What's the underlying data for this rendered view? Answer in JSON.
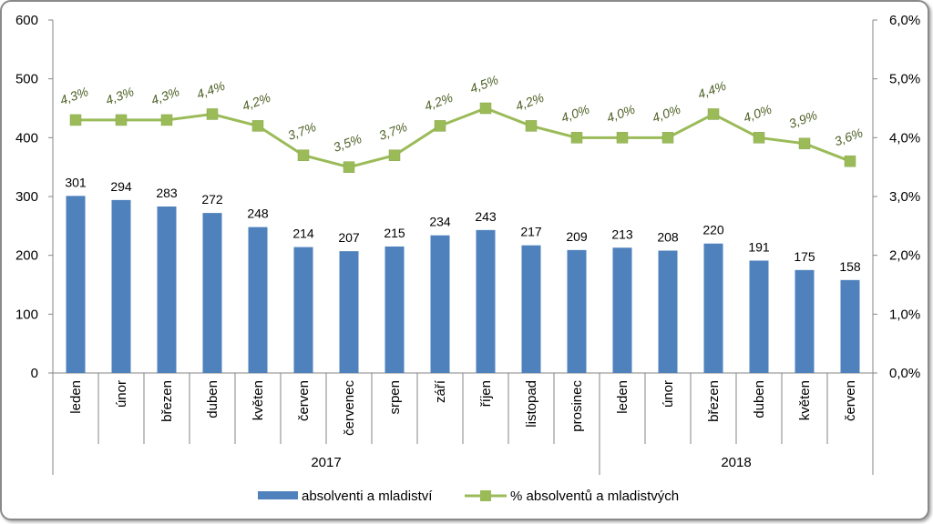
{
  "chart_data": {
    "type": "bar+line",
    "title": "",
    "categories": [
      "leden",
      "únor",
      "březen",
      "duben",
      "květen",
      "červen",
      "červenec",
      "srpen",
      "září",
      "říjen",
      "listopad",
      "prosinec",
      "leden",
      "únor",
      "březen",
      "duben",
      "květen",
      "červen"
    ],
    "groups": [
      {
        "label": "2017",
        "count": 12
      },
      {
        "label": "2018",
        "count": 6
      }
    ],
    "series": [
      {
        "name": "absolventi a mladiství",
        "type": "bar",
        "axis": "left",
        "color": "#4f81bd",
        "values": [
          301,
          294,
          283,
          272,
          248,
          214,
          207,
          215,
          234,
          243,
          217,
          209,
          213,
          208,
          220,
          191,
          175,
          158
        ],
        "labels": [
          "301",
          "294",
          "283",
          "272",
          "248",
          "214",
          "207",
          "215",
          "234",
          "243",
          "217",
          "209",
          "213",
          "208",
          "220",
          "191",
          "175",
          "158"
        ]
      },
      {
        "name": "% absolventů a mladistvých",
        "type": "line",
        "axis": "right",
        "color": "#9bbb59",
        "label_color": "#4f6228",
        "values": [
          4.3,
          4.3,
          4.3,
          4.4,
          4.2,
          3.7,
          3.5,
          3.7,
          4.2,
          4.5,
          4.2,
          4.0,
          4.0,
          4.0,
          4.4,
          4.0,
          3.9,
          3.6
        ],
        "labels": [
          "4,3%",
          "4,3%",
          "4,3%",
          "4,4%",
          "4,2%",
          "3,7%",
          "3,5%",
          "3,7%",
          "4,2%",
          "4,5%",
          "4,2%",
          "4,0%",
          "4,0%",
          "4,0%",
          "4,4%",
          "4,0%",
          "3,9%",
          "3,6%"
        ]
      }
    ],
    "left_axis": {
      "min": 0,
      "max": 600,
      "step": 100,
      "ticks": [
        "0",
        "100",
        "200",
        "300",
        "400",
        "500",
        "600"
      ]
    },
    "right_axis": {
      "min": 0,
      "max": 6,
      "step": 1,
      "ticks": [
        "0,0%",
        "1,0%",
        "2,0%",
        "3,0%",
        "4,0%",
        "5,0%",
        "6,0%"
      ]
    },
    "grid": false,
    "legend_position": "bottom"
  }
}
